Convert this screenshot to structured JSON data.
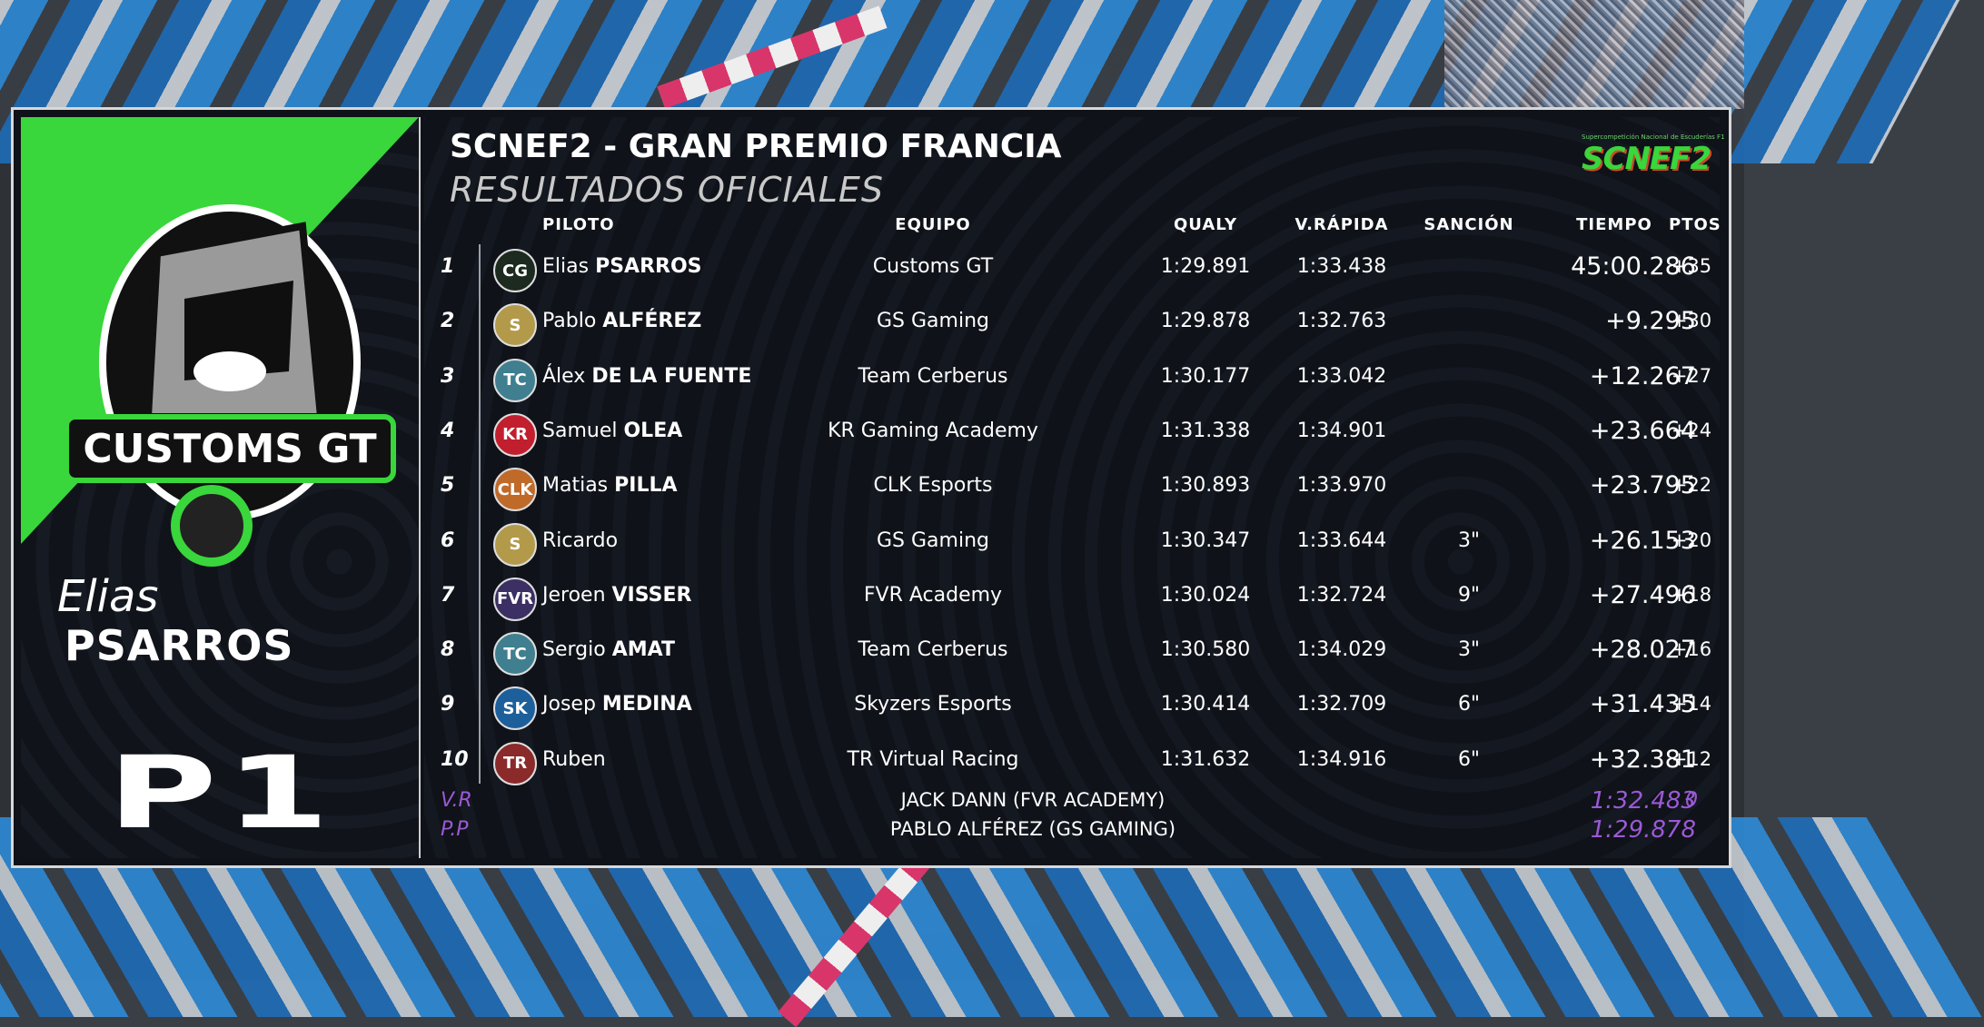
{
  "event": {
    "title": "SCNEF2 - GRAN PREMIO FRANCIA",
    "subtitle": "RESULTADOS OFICIALES",
    "brand_small": "Supercompetición Nacional de Escuderías F1",
    "brand_big": "SCNEF2"
  },
  "winner": {
    "team_logo_text": "CUSTOMS GT",
    "first_name": "Elias",
    "last_name": "PSARROS",
    "position": "P1"
  },
  "headers": {
    "piloto": "PILOTO",
    "equipo": "EQUIPO",
    "qualy": "QUALY",
    "vrapida": "V.RÁPIDA",
    "sancion": "SANCIÓN",
    "tiempo": "TIEMPO",
    "ptos": "PTOS"
  },
  "results": [
    {
      "pos": "1",
      "first": "Elias",
      "last": "PSARROS",
      "team": "Customs GT",
      "qualy": "1:29.891",
      "vr": "1:33.438",
      "sancion": "",
      "tiempo": "45:00.286",
      "pts": "+35",
      "badge": "CG",
      "color": "#1d2a1f"
    },
    {
      "pos": "2",
      "first": "Pablo",
      "last": "ALFÉREZ",
      "team": "GS Gaming",
      "qualy": "1:29.878",
      "vr": "1:32.763",
      "sancion": "",
      "tiempo": "+9.295",
      "pts": "+30",
      "badge": "S",
      "color": "#b39a4a"
    },
    {
      "pos": "3",
      "first": "Álex",
      "last": "DE LA FUENTE",
      "team": "Team Cerberus",
      "qualy": "1:30.177",
      "vr": "1:33.042",
      "sancion": "",
      "tiempo": "+12.267",
      "pts": "+27",
      "badge": "TC",
      "color": "#3f7f8f"
    },
    {
      "pos": "4",
      "first": "Samuel",
      "last": "OLEA",
      "team": "KR Gaming Academy",
      "qualy": "1:31.338",
      "vr": "1:34.901",
      "sancion": "",
      "tiempo": "+23.664",
      "pts": "+24",
      "badge": "KR",
      "color": "#c21f2e"
    },
    {
      "pos": "5",
      "first": "Matias",
      "last": "PILLA",
      "team": "CLK Esports",
      "qualy": "1:30.893",
      "vr": "1:33.970",
      "sancion": "",
      "tiempo": "+23.795",
      "pts": "+22",
      "badge": "CLK",
      "color": "#c06a2a"
    },
    {
      "pos": "6",
      "first": "Ricardo",
      "last": "",
      "team": "GS Gaming",
      "qualy": "1:30.347",
      "vr": "1:33.644",
      "sancion": "3\"",
      "tiempo": "+26.153",
      "pts": "+20",
      "badge": "S",
      "color": "#b39a4a"
    },
    {
      "pos": "7",
      "first": "Jeroen",
      "last": "VISSER",
      "team": "FVR Academy",
      "qualy": "1:30.024",
      "vr": "1:32.724",
      "sancion": "9\"",
      "tiempo": "+27.496",
      "pts": "+18",
      "badge": "FVR",
      "color": "#3b2f64"
    },
    {
      "pos": "8",
      "first": "Sergio",
      "last": "AMAT",
      "team": "Team Cerberus",
      "qualy": "1:30.580",
      "vr": "1:34.029",
      "sancion": "3\"",
      "tiempo": "+28.027",
      "pts": "+16",
      "badge": "TC",
      "color": "#3f7f8f"
    },
    {
      "pos": "9",
      "first": "Josep",
      "last": "MEDINA",
      "team": "Skyzers Esports",
      "qualy": "1:30.414",
      "vr": "1:32.709",
      "sancion": "6\"",
      "tiempo": "+31.435",
      "pts": "+14",
      "badge": "SK",
      "color": "#1d5f9a"
    },
    {
      "pos": "10",
      "first": "Ruben",
      "last": "",
      "team": "TR Virtual Racing",
      "qualy": "1:31.632",
      "vr": "1:34.916",
      "sancion": "6\"",
      "tiempo": "+32.381",
      "pts": "+12",
      "badge": "TR",
      "color": "#8a2a2a"
    }
  ],
  "footer": {
    "vr_label": "V.R",
    "vr_driver": "JACK DANN (FVR ACADEMY)",
    "vr_time": "1:32.483",
    "vr_pts": "0",
    "pp_label": "P.P",
    "pp_driver": "PABLO ALFÉREZ (GS GAMING)",
    "pp_time": "1:29.878"
  },
  "colors": {
    "accent_green": "#39d63c",
    "footer_purple": "#9b59d6",
    "panel_bg": "#0f1218"
  }
}
